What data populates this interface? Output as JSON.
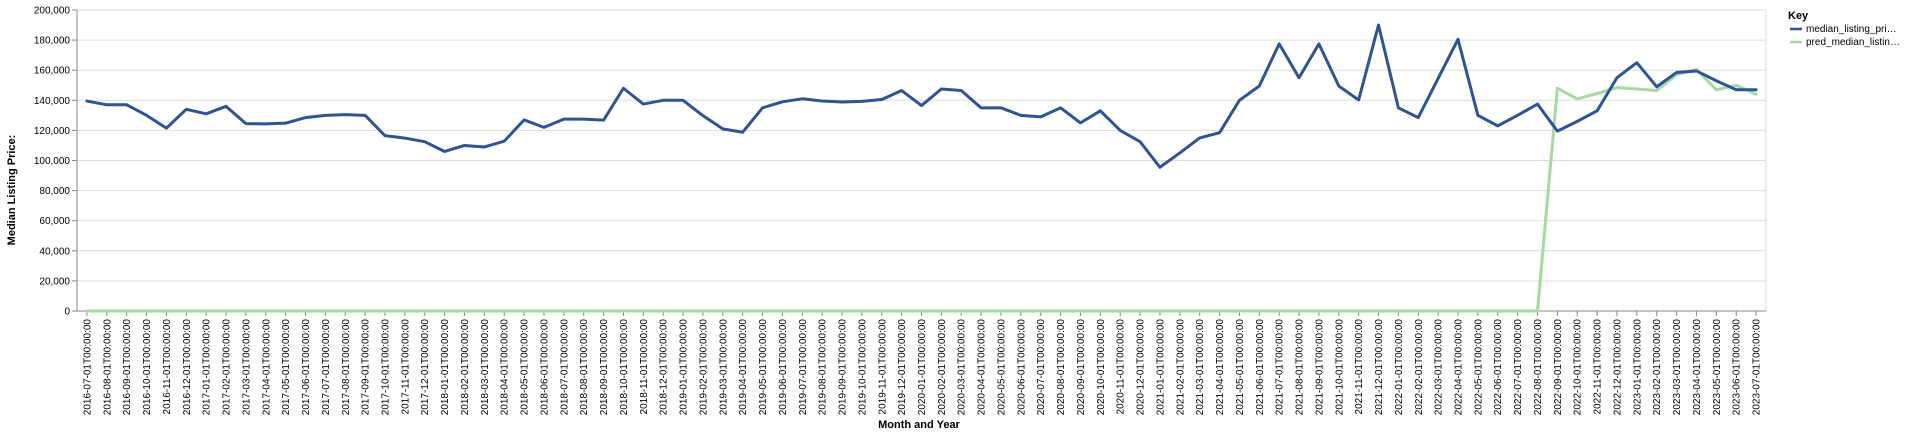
{
  "chart_data": {
    "type": "line",
    "title": "",
    "xlabel": "Month and Year",
    "ylabel": "Median Listing Price:",
    "ylim": [
      0,
      200000
    ],
    "yticks": [
      0,
      20000,
      40000,
      60000,
      80000,
      100000,
      120000,
      140000,
      160000,
      180000,
      200000
    ],
    "ytick_labels": [
      "0",
      "20,000",
      "40,000",
      "60,000",
      "80,000",
      "100,000",
      "120,000",
      "140,000",
      "160,000",
      "180,000",
      "200,000"
    ],
    "grid": true,
    "legend": {
      "title": "Key",
      "placement": "top-right",
      "entries": [
        "median_listing_pri…",
        "pred_median_listin…"
      ]
    },
    "x": [
      "2016-07-01T00:00:00",
      "2016-08-01T00:00:00",
      "2016-09-01T00:00:00",
      "2016-10-01T00:00:00",
      "2016-11-01T00:00:00",
      "2016-12-01T00:00:00",
      "2017-01-01T00:00:00",
      "2017-02-01T00:00:00",
      "2017-03-01T00:00:00",
      "2017-04-01T00:00:00",
      "2017-05-01T00:00:00",
      "2017-06-01T00:00:00",
      "2017-07-01T00:00:00",
      "2017-08-01T00:00:00",
      "2017-09-01T00:00:00",
      "2017-10-01T00:00:00",
      "2017-11-01T00:00:00",
      "2017-12-01T00:00:00",
      "2018-01-01T00:00:00",
      "2018-02-01T00:00:00",
      "2018-03-01T00:00:00",
      "2018-04-01T00:00:00",
      "2018-05-01T00:00:00",
      "2018-06-01T00:00:00",
      "2018-07-01T00:00:00",
      "2018-08-01T00:00:00",
      "2018-09-01T00:00:00",
      "2018-10-01T00:00:00",
      "2018-11-01T00:00:00",
      "2018-12-01T00:00:00",
      "2019-01-01T00:00:00",
      "2019-02-01T00:00:00",
      "2019-03-01T00:00:00",
      "2019-04-01T00:00:00",
      "2019-05-01T00:00:00",
      "2019-06-01T00:00:00",
      "2019-07-01T00:00:00",
      "2019-08-01T00:00:00",
      "2019-09-01T00:00:00",
      "2019-10-01T00:00:00",
      "2019-11-01T00:00:00",
      "2019-12-01T00:00:00",
      "2020-01-01T00:00:00",
      "2020-02-01T00:00:00",
      "2020-03-01T00:00:00",
      "2020-04-01T00:00:00",
      "2020-05-01T00:00:00",
      "2020-06-01T00:00:00",
      "2020-07-01T00:00:00",
      "2020-08-01T00:00:00",
      "2020-09-01T00:00:00",
      "2020-10-01T00:00:00",
      "2020-11-01T00:00:00",
      "2020-12-01T00:00:00",
      "2021-01-01T00:00:00",
      "2021-02-01T00:00:00",
      "2021-03-01T00:00:00",
      "2021-04-01T00:00:00",
      "2021-05-01T00:00:00",
      "2021-06-01T00:00:00",
      "2021-07-01T00:00:00",
      "2021-08-01T00:00:00",
      "2021-09-01T00:00:00",
      "2021-10-01T00:00:00",
      "2021-11-01T00:00:00",
      "2021-12-01T00:00:00",
      "2022-01-01T00:00:00",
      "2022-02-01T00:00:00",
      "2022-03-01T00:00:00",
      "2022-04-01T00:00:00",
      "2022-05-01T00:00:00",
      "2022-06-01T00:00:00",
      "2022-07-01T00:00:00",
      "2022-08-01T00:00:00",
      "2022-09-01T00:00:00",
      "2022-10-01T00:00:00",
      "2022-11-01T00:00:00",
      "2022-12-01T00:00:00",
      "2023-01-01T00:00:00",
      "2023-02-01T00:00:00",
      "2023-03-01T00:00:00",
      "2023-04-01T00:00:00",
      "2023-05-01T00:00:00",
      "2023-06-01T00:00:00",
      "2023-07-01T00:00:00"
    ],
    "series": [
      {
        "name": "median_listing_pri…",
        "color": "#2b5597",
        "values": [
          139500,
          137000,
          137000,
          130000,
          121500,
          134000,
          131000,
          136000,
          124500,
          124300,
          124800,
          128500,
          130000,
          130500,
          130000,
          116500,
          114900,
          112500,
          106000,
          110000,
          109000,
          112800,
          127000,
          122000,
          127500,
          127500,
          126800,
          148000,
          137500,
          140000,
          140000,
          129800,
          121000,
          118800,
          135000,
          139000,
          141000,
          139500,
          138900,
          139300,
          140500,
          146500,
          136500,
          147500,
          146500,
          135000,
          135000,
          130000,
          129000,
          135000,
          125000,
          133000,
          120000,
          112500,
          95500,
          105000,
          115000,
          118500,
          140000,
          149500,
          177500,
          155000,
          177500,
          149500,
          140200,
          190000,
          135000,
          128500,
          154500,
          180500,
          130000,
          123000,
          130000,
          137500,
          119500,
          126000,
          133000,
          155000,
          165000,
          149000,
          158500,
          159500,
          153000,
          147000,
          147000
        ]
      },
      {
        "name": "pred_median_listin…",
        "color": "#a6dba0",
        "values": [
          0,
          0,
          0,
          0,
          0,
          0,
          0,
          0,
          0,
          0,
          0,
          0,
          0,
          0,
          0,
          0,
          0,
          0,
          0,
          0,
          0,
          0,
          0,
          0,
          0,
          0,
          0,
          0,
          0,
          0,
          0,
          0,
          0,
          0,
          0,
          0,
          0,
          0,
          0,
          0,
          0,
          0,
          0,
          0,
          0,
          0,
          0,
          0,
          0,
          0,
          0,
          0,
          0,
          0,
          0,
          0,
          0,
          0,
          0,
          0,
          0,
          0,
          0,
          0,
          0,
          0,
          0,
          0,
          0,
          0,
          0,
          0,
          0,
          0,
          148000,
          141000,
          144500,
          148500,
          147500,
          146500,
          157000,
          160500,
          147000,
          150000,
          144000
        ]
      }
    ]
  }
}
